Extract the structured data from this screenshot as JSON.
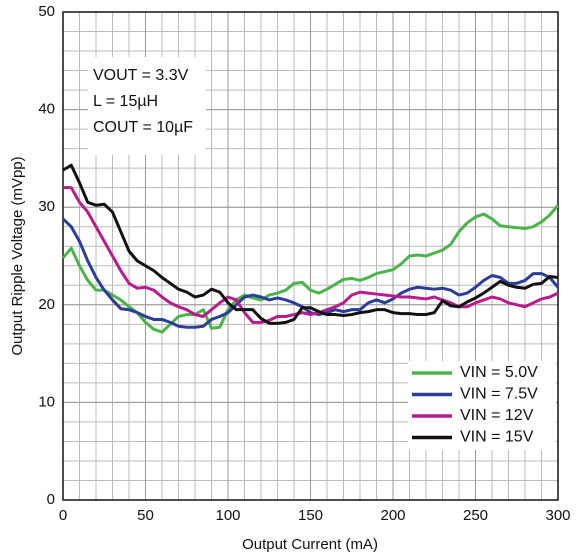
{
  "chart_data": {
    "type": "line",
    "xlabel": "Output Current (mA)",
    "ylabel": "Output Ripple Voltage (mVpp)",
    "annotations": [
      "VOUT = 3.3V",
      "L = 15µH",
      "COUT = 10µF"
    ],
    "xlim": [
      0,
      300
    ],
    "ylim": [
      0,
      50
    ],
    "xticks": [
      0,
      50,
      100,
      150,
      200,
      250,
      300
    ],
    "yticks": [
      0,
      10,
      20,
      30,
      40,
      50
    ],
    "grid": true,
    "minor_grid_step": [
      10,
      2
    ],
    "legend": "lower right",
    "x": [
      0,
      5,
      10,
      15,
      20,
      25,
      30,
      35,
      40,
      45,
      50,
      55,
      60,
      65,
      70,
      75,
      80,
      85,
      90,
      95,
      100,
      105,
      110,
      115,
      120,
      125,
      130,
      135,
      140,
      145,
      150,
      155,
      160,
      165,
      170,
      175,
      180,
      185,
      190,
      195,
      200,
      205,
      210,
      215,
      220,
      225,
      230,
      235,
      240,
      245,
      250,
      255,
      260,
      265,
      270,
      275,
      280,
      285,
      290,
      295,
      300
    ],
    "series": [
      {
        "name": "VIN = 5.0V",
        "color": "#4cb34c",
        "values": [
          24.8,
          25.8,
          24,
          22.5,
          21.5,
          21.5,
          21,
          20.5,
          19.8,
          19.2,
          18.2,
          17.5,
          17.2,
          18,
          18.8,
          19,
          19,
          19.5,
          17.6,
          17.7,
          19.5,
          20.5,
          21,
          20.7,
          20.5,
          21,
          21.2,
          21.5,
          22.2,
          22.3,
          21.5,
          21.2,
          21.6,
          22.1,
          22.6,
          22.7,
          22.5,
          22.8,
          23.2,
          23.4,
          23.6,
          24.2,
          25,
          25.1,
          25,
          25.3,
          25.6,
          26.2,
          27.5,
          28.4,
          29,
          29.3,
          28.8,
          28.1,
          28,
          27.9,
          27.8,
          28,
          28.5,
          29.2,
          30.2
        ]
      },
      {
        "name": "VIN = 7.5V",
        "color": "#2b3d97",
        "values": [
          28.8,
          28,
          26.5,
          24.5,
          22.8,
          21.5,
          20.5,
          19.6,
          19.5,
          19.2,
          18.8,
          18.5,
          18.5,
          18.2,
          17.8,
          17.7,
          17.7,
          17.8,
          18.5,
          18.8,
          19.2,
          20,
          20.8,
          21,
          20.8,
          20.5,
          20.7,
          20.5,
          20.2,
          19.8,
          19.2,
          19,
          19.2,
          19.5,
          19.3,
          19.5,
          19.5,
          20.2,
          20.5,
          20.2,
          20.6,
          21.2,
          21.6,
          21.8,
          21.7,
          21.6,
          21.7,
          21.5,
          21,
          21.2,
          21.8,
          22.5,
          23,
          22.8,
          22.2,
          22.2,
          22.5,
          23.2,
          23.2,
          22.8,
          21.8
        ]
      },
      {
        "name": "VIN = 12V",
        "color": "#b81c8c",
        "values": [
          32,
          32,
          30.5,
          29.5,
          28,
          26.5,
          25,
          23.5,
          22.2,
          21.7,
          21.8,
          21.5,
          20.8,
          20.2,
          19.8,
          19.5,
          19,
          18.8,
          19.5,
          20.2,
          20.8,
          20.5,
          19.2,
          18.2,
          18.2,
          18.4,
          18.8,
          18.8,
          19,
          19.2,
          19,
          19.2,
          19.5,
          19.8,
          20.2,
          21,
          21.3,
          21.2,
          21.1,
          21,
          20.9,
          20.8,
          20.8,
          20.7,
          20.6,
          20.8,
          20.5,
          20.2,
          19.8,
          19.8,
          20.2,
          20.5,
          20.8,
          20.6,
          20.2,
          20,
          19.8,
          20.2,
          20.6,
          20.8,
          21.2
        ]
      },
      {
        "name": "VIN = 15V",
        "color": "#111111",
        "values": [
          33.8,
          34.3,
          32.5,
          30.5,
          30.2,
          30.3,
          29.5,
          27.5,
          25.5,
          24.5,
          24,
          23.5,
          22.8,
          22.2,
          21.6,
          21.3,
          20.8,
          21,
          21.6,
          21.3,
          20.2,
          19.5,
          19.5,
          19.5,
          18.6,
          18.1,
          18.1,
          18.2,
          18.5,
          19.7,
          19.7,
          19.3,
          19,
          19,
          18.9,
          19,
          19.2,
          19.3,
          19.5,
          19.5,
          19.2,
          19.1,
          19.1,
          19,
          19,
          19.2,
          20.4,
          19.9,
          19.8,
          20.3,
          20.7,
          21.2,
          21.8,
          22.4,
          22,
          21.8,
          21.7,
          22.1,
          22.2,
          22.9,
          22.8
        ]
      }
    ]
  }
}
